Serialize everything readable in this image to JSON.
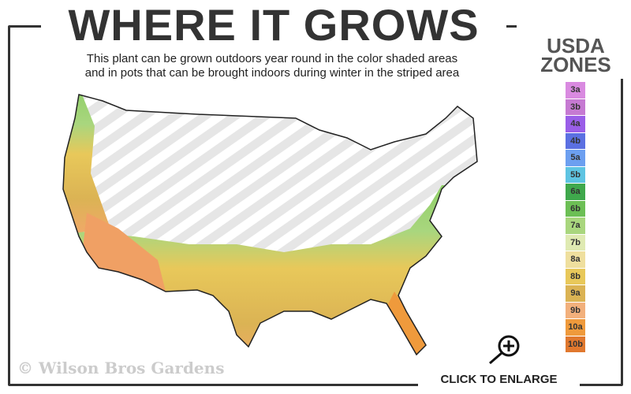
{
  "header": {
    "title": "WHERE IT GROWS",
    "subtitle_line1": "This plant can be grown outdoors year round in the color shaded areas",
    "subtitle_line2": "and in pots that can be brought indoors during winter in the striped area"
  },
  "legend": {
    "title_line1": "USDA",
    "title_line2": "ZONES",
    "zones": [
      {
        "label": "3a",
        "color": "#d98ae0"
      },
      {
        "label": "3b",
        "color": "#c67ad2"
      },
      {
        "label": "4a",
        "color": "#9a5ee8"
      },
      {
        "label": "4b",
        "color": "#5b70e2"
      },
      {
        "label": "5a",
        "color": "#6c9ff0"
      },
      {
        "label": "5b",
        "color": "#5ec4e2"
      },
      {
        "label": "6a",
        "color": "#3fa84c"
      },
      {
        "label": "6b",
        "color": "#6cbf55"
      },
      {
        "label": "7a",
        "color": "#a9d67e"
      },
      {
        "label": "7b",
        "color": "#dfeab2"
      },
      {
        "label": "8a",
        "color": "#efdf9e"
      },
      {
        "label": "8b",
        "color": "#e8c85a"
      },
      {
        "label": "9a",
        "color": "#dbb354"
      },
      {
        "label": "9b",
        "color": "#f2b07c"
      },
      {
        "label": "10a",
        "color": "#ef9a3c"
      },
      {
        "label": "10b",
        "color": "#e0782e"
      }
    ]
  },
  "watermark": "© Wilson Bros Gardens",
  "enlarge_label": "CLICK TO ENLARGE",
  "icons": {
    "enlarge": "magnifier-plus-icon"
  }
}
